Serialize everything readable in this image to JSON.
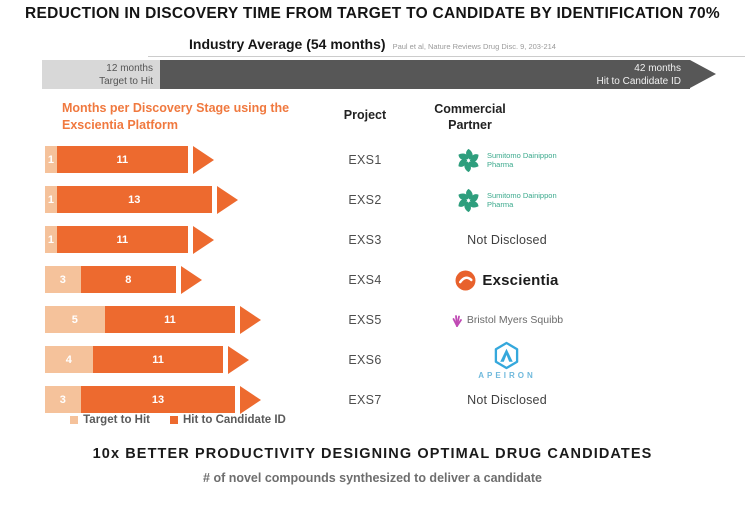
{
  "header": {
    "title": "REDUCTION IN DISCOVERY TIME FROM TARGET TO CANDIDATE BY IDENTIFICATION 70%",
    "subtitle": "Industry Average (54 months)",
    "citation": "Paul et al, Nature Reviews Drug Disc. 9, 203-214"
  },
  "industry_bar": {
    "target_to_hit": {
      "duration": "12 months",
      "label": "Target to Hit"
    },
    "hit_to_candidate": {
      "duration": "42 months",
      "label": "Hit to Candidate ID"
    }
  },
  "platform_chart": {
    "heading": "Months per Discovery Stage using the Exscientia Platform",
    "legend": [
      {
        "label": "Target to Hit",
        "color": "#F5C29B"
      },
      {
        "label": "Hit to Candidate ID",
        "color": "#ED6A2F"
      }
    ]
  },
  "chart_data": {
    "type": "bar",
    "orientation": "horizontal",
    "unit": "months",
    "title": "Months per Discovery Stage using the Exscientia Platform",
    "categories": [
      "EXS1",
      "EXS2",
      "EXS3",
      "EXS4",
      "EXS5",
      "EXS6",
      "EXS7"
    ],
    "series": [
      {
        "name": "Target to Hit",
        "color": "#F5C29B",
        "values": [
          1,
          1,
          1,
          3,
          5,
          4,
          3
        ]
      },
      {
        "name": "Hit to Candidate ID",
        "color": "#ED6A2F",
        "values": [
          11,
          13,
          11,
          8,
          11,
          11,
          13
        ]
      }
    ],
    "industry_average": {
      "label": "Industry Average (54 months)",
      "target_to_hit_months": 12,
      "hit_to_candidate_months": 42
    },
    "legend_position": "bottom"
  },
  "table": {
    "project_header": "Project",
    "partner_header": "Commercial Partner",
    "rows": [
      {
        "project": "EXS1",
        "partner": "Sumitomo Dainippon Pharma",
        "logo": "sumitomo"
      },
      {
        "project": "EXS2",
        "partner": "Sumitomo Dainippon Pharma",
        "logo": "sumitomo"
      },
      {
        "project": "EXS3",
        "partner": "Not Disclosed",
        "logo": "none"
      },
      {
        "project": "EXS4",
        "partner": "Exscientia",
        "logo": "exscientia"
      },
      {
        "project": "EXS5",
        "partner": "Bristol Myers Squibb",
        "logo": "bms"
      },
      {
        "project": "EXS6",
        "partner": "APEIRON",
        "logo": "apeiron"
      },
      {
        "project": "EXS7",
        "partner": "Not Disclosed",
        "logo": "none"
      }
    ]
  },
  "footer": {
    "title": "10x BETTER PRODUCTIVITY DESIGNING OPTIMAL DRUG CANDIDATES",
    "subtitle": "# of novel compounds synthesized to deliver a candidate"
  },
  "colors": {
    "target_to_hit": "#F5C29B",
    "hit_to_candidate": "#ED6A2F",
    "industry_light": "#D8D8D8",
    "industry_dark": "#575757",
    "accent_orange_text": "#F0793F",
    "sumitomo_green": "#2E9E7D",
    "bms_magenta": "#C04AB4",
    "apeiron_blue": "#35A8DC"
  }
}
